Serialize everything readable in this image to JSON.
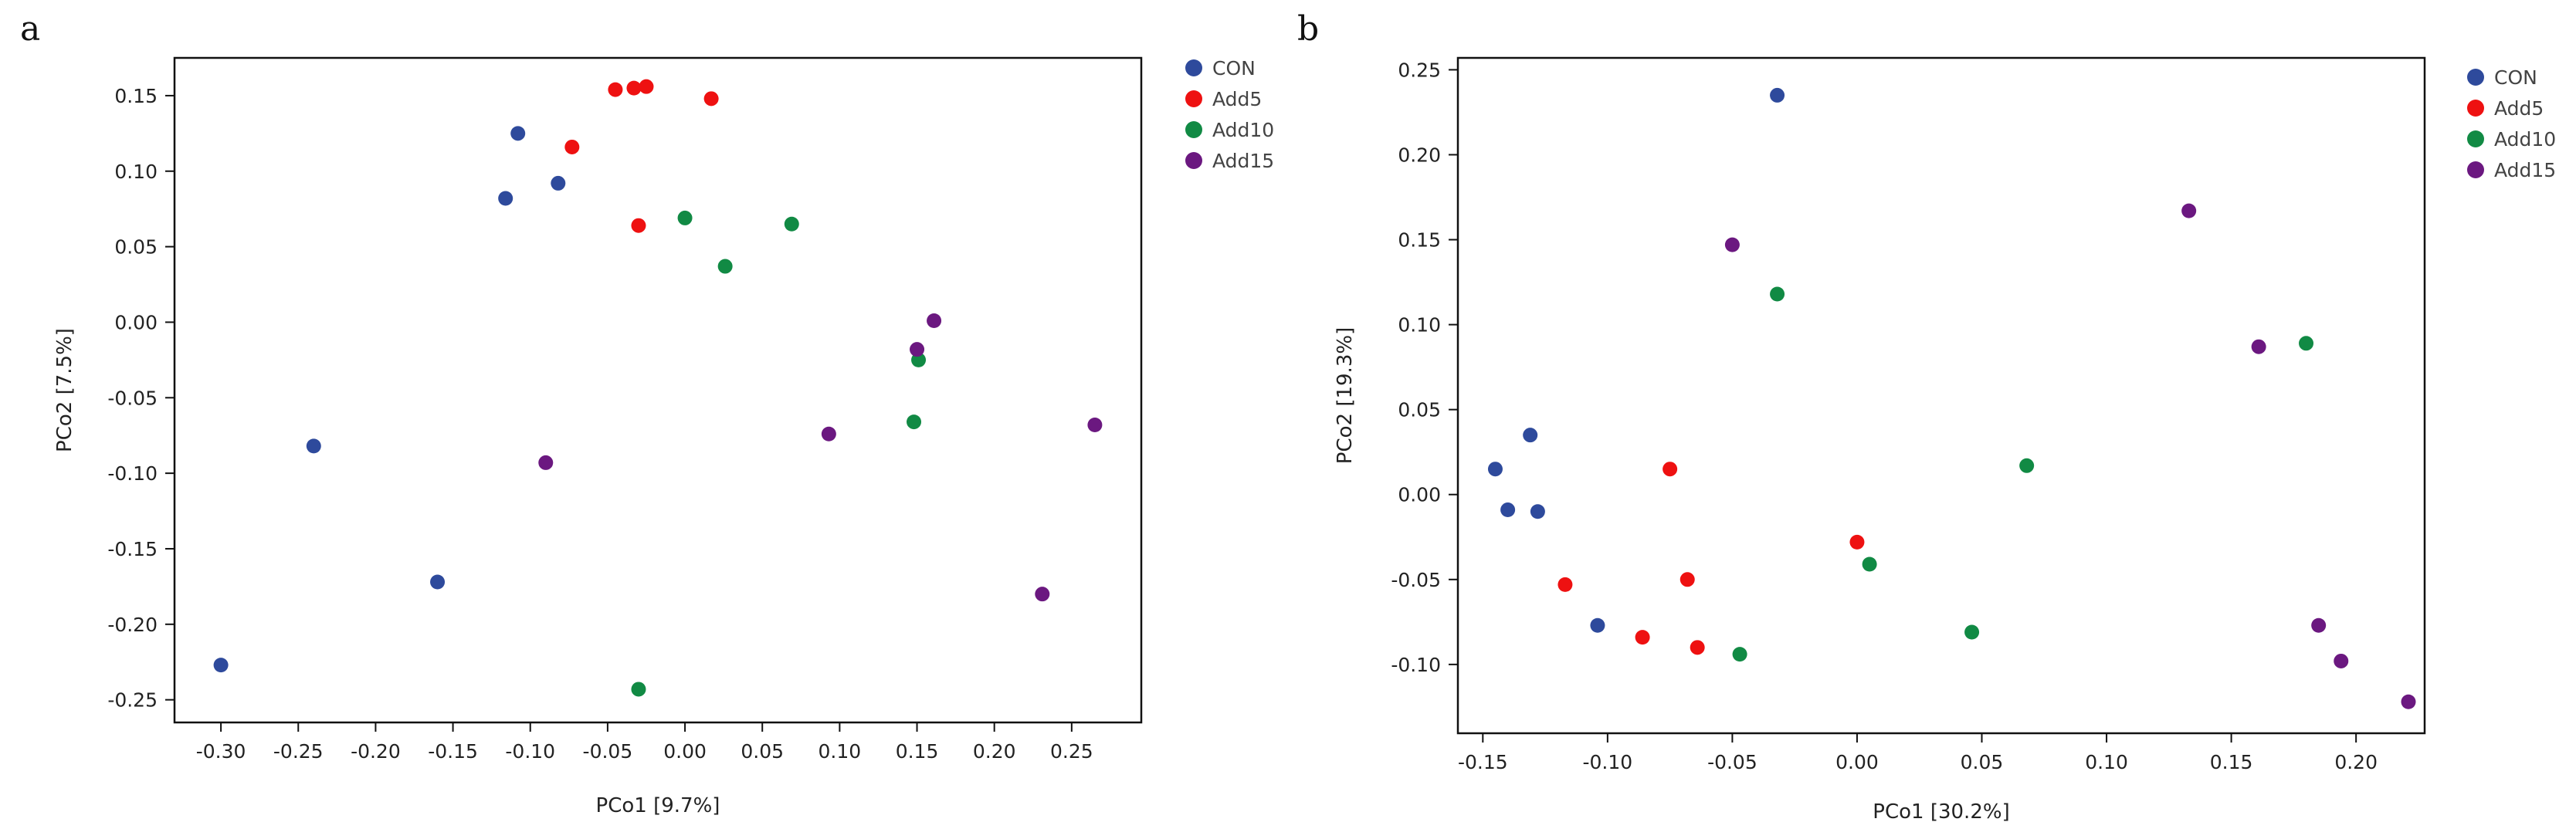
{
  "colors": {
    "CON": "#2e4a9c",
    "Add5": "#ee1111",
    "Add10": "#118a44",
    "Add15": "#6b1880"
  },
  "chart_data": [
    {
      "type": "scatter",
      "panel_label": "a",
      "xlabel": "PCo1 [9.7%]",
      "ylabel": "PCo2 [7.5%]",
      "xlim": [
        -0.33,
        0.295
      ],
      "ylim": [
        -0.265,
        0.175
      ],
      "xticks": [
        -0.3,
        -0.25,
        -0.2,
        -0.15,
        -0.1,
        -0.05,
        0.0,
        0.05,
        0.1,
        0.15,
        0.2,
        0.25
      ],
      "xtick_labels": [
        "-0.30",
        "-0.25",
        "-0.20",
        "-0.15",
        "-0.10",
        "-0.05",
        "0.00",
        "0.05",
        "0.10",
        "0.15",
        "0.20",
        "0.25"
      ],
      "yticks": [
        0.15,
        0.1,
        0.05,
        0.0,
        -0.05,
        -0.1,
        -0.15,
        -0.2,
        -0.25
      ],
      "ytick_labels": [
        "0.15",
        "0.10",
        "0.05",
        "0.00",
        "-0.05",
        "-0.10",
        "-0.15",
        "-0.20",
        "-0.25"
      ],
      "legend": [
        "CON",
        "Add5",
        "Add10",
        "Add15"
      ],
      "legend_position": "outside-top-right",
      "series": [
        {
          "name": "CON",
          "points": [
            [
              -0.108,
              0.125
            ],
            [
              -0.116,
              0.082
            ],
            [
              -0.082,
              0.092
            ],
            [
              -0.24,
              -0.082
            ],
            [
              -0.16,
              -0.172
            ],
            [
              -0.3,
              -0.227
            ]
          ]
        },
        {
          "name": "Add5",
          "points": [
            [
              -0.045,
              0.154
            ],
            [
              -0.033,
              0.155
            ],
            [
              -0.025,
              0.156
            ],
            [
              0.017,
              0.148
            ],
            [
              -0.073,
              0.116
            ],
            [
              -0.03,
              0.064
            ]
          ]
        },
        {
          "name": "Add10",
          "points": [
            [
              0.0,
              0.069
            ],
            [
              0.069,
              0.065
            ],
            [
              0.026,
              0.037
            ],
            [
              0.151,
              -0.025
            ],
            [
              0.148,
              -0.066
            ],
            [
              -0.03,
              -0.243
            ]
          ]
        },
        {
          "name": "Add15",
          "points": [
            [
              0.161,
              0.001
            ],
            [
              0.15,
              -0.018
            ],
            [
              0.093,
              -0.074
            ],
            [
              0.265,
              -0.068
            ],
            [
              -0.09,
              -0.093
            ],
            [
              0.231,
              -0.18
            ]
          ]
        }
      ]
    },
    {
      "type": "scatter",
      "panel_label": "b",
      "xlabel": "PCo1 [30.2%]",
      "ylabel": "PCo2 [19.3%]",
      "xlim": [
        -0.16,
        0.2275
      ],
      "ylim": [
        -0.1405,
        0.257
      ],
      "xticks": [
        -0.15,
        -0.1,
        -0.05,
        0.0,
        0.05,
        0.1,
        0.15,
        0.2
      ],
      "xtick_labels": [
        "-0.15",
        "-0.10",
        "-0.05",
        "0.00",
        "0.05",
        "0.10",
        "0.15",
        "0.20"
      ],
      "yticks": [
        0.25,
        0.2,
        0.15,
        0.1,
        0.05,
        0.0,
        -0.05,
        -0.1
      ],
      "ytick_labels": [
        "0.25",
        "0.20",
        "0.15",
        "0.10",
        "0.05",
        "0.00",
        "-0.05",
        "-0.10"
      ],
      "legend": [
        "CON",
        "Add5",
        "Add10",
        "Add15"
      ],
      "legend_position": "outside-top-right",
      "series": [
        {
          "name": "CON",
          "points": [
            [
              -0.032,
              0.235
            ],
            [
              -0.131,
              0.035
            ],
            [
              -0.145,
              0.015
            ],
            [
              -0.14,
              -0.009
            ],
            [
              -0.128,
              -0.01
            ],
            [
              -0.104,
              -0.077
            ]
          ]
        },
        {
          "name": "Add5",
          "points": [
            [
              -0.075,
              0.015
            ],
            [
              0.0,
              -0.028
            ],
            [
              -0.068,
              -0.05
            ],
            [
              -0.117,
              -0.053
            ],
            [
              -0.086,
              -0.084
            ],
            [
              -0.064,
              -0.09
            ]
          ]
        },
        {
          "name": "Add10",
          "points": [
            [
              -0.032,
              0.118
            ],
            [
              0.18,
              0.089
            ],
            [
              0.068,
              0.017
            ],
            [
              0.005,
              -0.041
            ],
            [
              0.046,
              -0.081
            ],
            [
              -0.047,
              -0.094
            ]
          ]
        },
        {
          "name": "Add15",
          "points": [
            [
              -0.05,
              0.147
            ],
            [
              0.133,
              0.167
            ],
            [
              0.161,
              0.087
            ],
            [
              0.185,
              -0.077
            ],
            [
              0.194,
              -0.098
            ],
            [
              0.221,
              -0.122
            ]
          ]
        }
      ]
    }
  ]
}
